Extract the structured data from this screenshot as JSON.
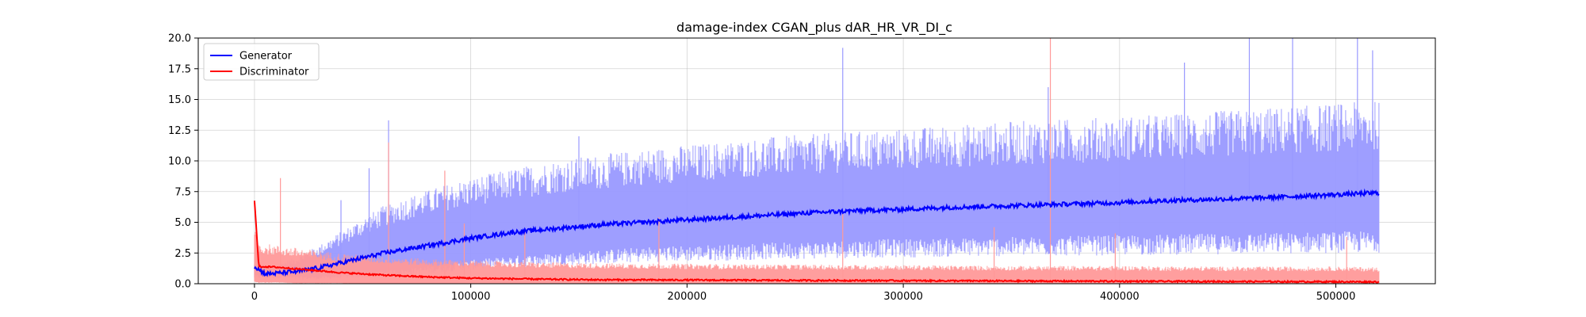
{
  "chart_data": {
    "type": "line",
    "title": "damage-index   CGAN_plus    dAR_HR_VR_DI_c",
    "xlabel": "",
    "ylabel": "",
    "xlim": [
      -26000,
      546000
    ],
    "ylim": [
      0,
      20
    ],
    "x_ticks": [
      0,
      100000,
      200000,
      300000,
      400000,
      500000
    ],
    "x_tick_labels": [
      "0",
      "100000",
      "200000",
      "300000",
      "400000",
      "500000"
    ],
    "y_ticks": [
      0,
      2.5,
      5,
      7.5,
      10,
      12.5,
      15,
      17.5,
      20
    ],
    "y_tick_labels": [
      "0.0",
      "2.5",
      "5.0",
      "7.5",
      "10.0",
      "12.5",
      "15.0",
      "17.5",
      "20.0"
    ],
    "grid": true,
    "legend_position": "top-left",
    "series": [
      {
        "name": "Generator",
        "color": "#0000ff",
        "band_color": "#9999ff",
        "x": [
          0,
          5000,
          10000,
          20000,
          30000,
          40000,
          50000,
          60000,
          70000,
          80000,
          90000,
          100000,
          120000,
          140000,
          160000,
          180000,
          200000,
          220000,
          240000,
          260000,
          280000,
          300000,
          320000,
          340000,
          360000,
          380000,
          400000,
          420000,
          440000,
          460000,
          480000,
          500000,
          520000
        ],
        "mean": [
          1.4,
          0.8,
          0.85,
          1.0,
          1.3,
          1.7,
          2.1,
          2.5,
          2.8,
          3.1,
          3.4,
          3.7,
          4.2,
          4.5,
          4.8,
          5.0,
          5.2,
          5.4,
          5.6,
          5.8,
          5.95,
          6.05,
          6.2,
          6.3,
          6.4,
          6.5,
          6.6,
          6.75,
          6.85,
          6.95,
          7.1,
          7.25,
          7.4
        ],
        "band_upper": [
          1.5,
          1.2,
          1.4,
          2.0,
          2.8,
          3.8,
          4.8,
          5.7,
          6.3,
          6.8,
          7.3,
          7.7,
          8.4,
          9.0,
          9.4,
          9.8,
          10.1,
          10.4,
          10.7,
          10.9,
          11.1,
          11.3,
          11.5,
          11.7,
          11.9,
          12.0,
          12.2,
          12.3,
          12.5,
          12.7,
          12.9,
          13.1,
          13.3
        ],
        "band_lower": [
          0.6,
          0.6,
          0.6,
          0.5,
          0.5,
          0.6,
          0.7,
          0.9,
          1.0,
          1.2,
          1.4,
          1.6,
          1.9,
          2.1,
          2.3,
          2.5,
          2.6,
          2.7,
          2.8,
          2.9,
          3.0,
          3.05,
          3.1,
          3.15,
          3.2,
          3.25,
          3.3,
          3.35,
          3.4,
          3.45,
          3.5,
          3.55,
          3.6
        ],
        "spikes": [
          [
            62000,
            13.3
          ],
          [
            53000,
            9.4
          ],
          [
            40000,
            6.8
          ],
          [
            272000,
            19.2
          ],
          [
            367000,
            16.0
          ],
          [
            460000,
            20.0
          ],
          [
            480000,
            20.0
          ],
          [
            510000,
            20.0
          ],
          [
            517000,
            19.0
          ],
          [
            150000,
            12.0
          ],
          [
            430000,
            18.0
          ]
        ]
      },
      {
        "name": "Discriminator",
        "color": "#ff0000",
        "band_color": "#ff9999",
        "x": [
          0,
          2000,
          10000,
          20000,
          30000,
          40000,
          50000,
          60000,
          80000,
          100000,
          120000,
          140000,
          160000,
          200000,
          250000,
          300000,
          350000,
          400000,
          450000,
          500000,
          520000
        ],
        "mean": [
          6.8,
          1.4,
          1.35,
          1.2,
          1.05,
          0.9,
          0.8,
          0.7,
          0.55,
          0.45,
          0.4,
          0.35,
          0.32,
          0.3,
          0.27,
          0.25,
          0.22,
          0.2,
          0.18,
          0.16,
          0.15
        ],
        "band_upper": [
          4.0,
          3.0,
          2.8,
          2.6,
          2.4,
          2.2,
          2.1,
          2.0,
          1.8,
          1.7,
          1.6,
          1.55,
          1.5,
          1.45,
          1.4,
          1.35,
          1.3,
          1.3,
          1.25,
          1.25,
          1.2
        ],
        "band_lower": [
          0.2,
          0.1,
          0.1,
          0.05,
          0.05,
          0.05,
          0,
          0,
          0,
          0,
          0,
          0,
          0,
          0,
          0,
          0,
          0,
          0,
          0,
          0,
          0
        ],
        "spikes": [
          [
            0,
            6.8
          ],
          [
            12000,
            8.6
          ],
          [
            62000,
            11.5
          ],
          [
            88000,
            9.2
          ],
          [
            97000,
            4.9
          ],
          [
            187000,
            5.4
          ],
          [
            272000,
            5.9
          ],
          [
            368000,
            20.0
          ],
          [
            342000,
            4.6
          ],
          [
            398000,
            4.1
          ],
          [
            505000,
            3.8
          ],
          [
            125000,
            4.2
          ]
        ]
      }
    ]
  }
}
